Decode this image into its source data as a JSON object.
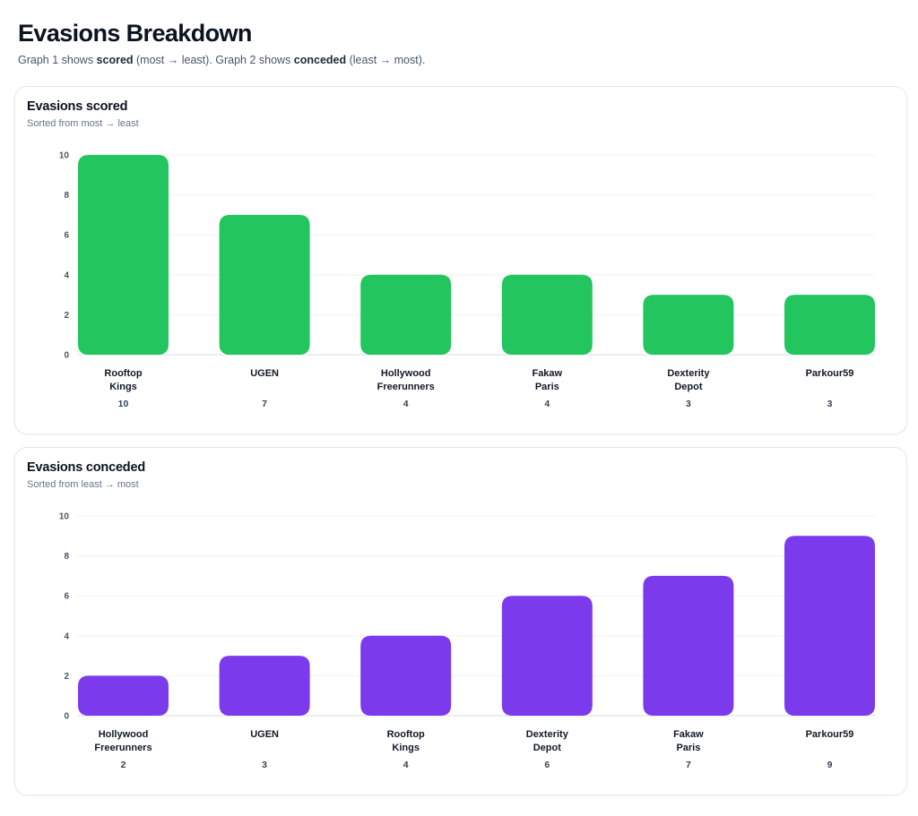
{
  "header": {
    "title": "Evasions Breakdown",
    "subtitle_parts": [
      {
        "text": "Graph 1 shows ",
        "bold": false
      },
      {
        "text": "scored",
        "bold": true
      },
      {
        "text": " (most → least). Graph 2 shows ",
        "bold": false
      },
      {
        "text": "conceded",
        "bold": true
      },
      {
        "text": " (least → most).",
        "bold": false
      }
    ]
  },
  "colors": {
    "scored": "#22c55e",
    "conceded": "#7c3aed"
  },
  "chart_data": [
    {
      "id": "scored",
      "type": "bar",
      "title": "Evasions scored",
      "subtitle": "Sorted from most → least",
      "xlabel": "",
      "ylabel": "",
      "ylim": [
        0,
        10
      ],
      "yticks": [
        0,
        2,
        4,
        6,
        8,
        10
      ],
      "grid": true,
      "legend": "none",
      "categories": [
        [
          "Rooftop",
          "Kings"
        ],
        [
          "UGEN"
        ],
        [
          "Hollywood",
          "Freerunners"
        ],
        [
          "Fakaw",
          "Paris"
        ],
        [
          "Dexterity",
          "Depot"
        ],
        [
          "Parkour59"
        ]
      ],
      "values": [
        10,
        7,
        4,
        4,
        3,
        3
      ],
      "color": "#22c55e"
    },
    {
      "id": "conceded",
      "type": "bar",
      "title": "Evasions conceded",
      "subtitle": "Sorted from least → most",
      "xlabel": "",
      "ylabel": "",
      "ylim": [
        0,
        10
      ],
      "yticks": [
        0,
        2,
        4,
        6,
        8,
        10
      ],
      "grid": true,
      "legend": "none",
      "categories": [
        [
          "Hollywood",
          "Freerunners"
        ],
        [
          "UGEN"
        ],
        [
          "Rooftop",
          "Kings"
        ],
        [
          "Dexterity",
          "Depot"
        ],
        [
          "Fakaw",
          "Paris"
        ],
        [
          "Parkour59"
        ]
      ],
      "values": [
        2,
        3,
        4,
        6,
        7,
        9
      ],
      "color": "#7c3aed"
    }
  ]
}
